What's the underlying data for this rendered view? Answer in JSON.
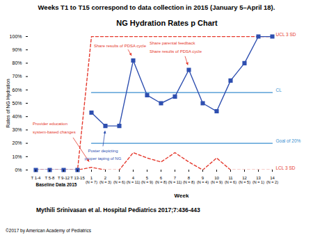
{
  "chart_data": {
    "type": "line",
    "subtitle": "Weeks T1 to T15 correspond to data collection in 2015 (January 5–April 18).",
    "title": "NG Hydration Rates p Chart",
    "caption": [
      "Mythili Srinivasan et al. Hospital Pediatrics 2017;7:436-443",
      "©2017 by American Academy of Pediatrics"
    ],
    "x_label": "Week",
    "y_label": "Rates of NG Hydration",
    "categories": [
      "T 1-4",
      "T 5-8",
      "T 9-12",
      "T 13-15",
      "1",
      "2",
      "3",
      "4",
      "5",
      "6",
      "7",
      "8",
      "9",
      "10",
      "11",
      "12",
      "13",
      "14"
    ],
    "n_labels": [
      null,
      null,
      null,
      null,
      "(N = 7)",
      "(N = 3)",
      "(N = 6)",
      "(N = 11)",
      "(N = 9)",
      "(N = 8)",
      "(N = 11)",
      "(N = 8)",
      "(N = 4)",
      "(N = 9)",
      "(N = 6)",
      "(N = 5)",
      "(N = 1)",
      "(N = 2)"
    ],
    "group_label": {
      "text": "Baseline Data 2015",
      "from": "T 1-4",
      "to": "T 13-15"
    },
    "series": [
      {
        "name": "UCL 3 SD",
        "color": "#e5392d",
        "line_style": "dashed",
        "values": [
          0,
          0,
          0,
          0,
          100,
          100,
          100,
          100,
          100,
          100,
          100,
          100,
          100,
          100,
          100,
          100,
          100,
          100
        ]
      },
      {
        "name": "LCL 3 SD",
        "color": "#e5392d",
        "line_style": "dashed",
        "values": [
          0,
          0,
          0,
          0,
          2,
          0,
          0,
          13,
          9,
          6,
          13,
          6,
          0,
          9,
          0,
          0,
          0,
          0
        ]
      },
      {
        "name": "Goal of 20%",
        "color": "#3a8fd0",
        "line_style": "solid",
        "values": [
          null,
          null,
          null,
          null,
          20,
          20,
          20,
          20,
          20,
          20,
          20,
          20,
          20,
          20,
          20,
          20,
          20,
          20
        ]
      },
      {
        "name": "CL",
        "color": "#3a8fd0",
        "line_style": "solid",
        "values": [
          null,
          null,
          null,
          null,
          58,
          58,
          58,
          58,
          58,
          58,
          58,
          58,
          58,
          58,
          58,
          58,
          58,
          58
        ]
      },
      {
        "color": "#2e4fb0",
        "line_style": "solid",
        "marker": "square",
        "values": [
          0,
          0,
          0,
          0,
          null,
          null,
          null,
          null,
          null,
          null,
          null,
          null,
          null,
          null,
          null,
          null,
          null,
          null
        ]
      },
      {
        "color": "#2e4fb0",
        "line_style": "solid",
        "marker": "square",
        "values": [
          null,
          null,
          null,
          null,
          43,
          33,
          33,
          82,
          56,
          50,
          55,
          75,
          50,
          44,
          67,
          80,
          100,
          100
        ]
      }
    ],
    "annotations": [
      {
        "text": [
          "Provider education",
          "system-based changes"
        ],
        "target": "1",
        "color": "#e5392d"
      },
      {
        "text": [
          "Poster depicting",
          "proper taping of NG"
        ],
        "target": "2",
        "color": "#2e4fb0"
      },
      {
        "text": [
          "Share results of PDSA cycle"
        ],
        "target": "4",
        "color": "#e5392d"
      },
      {
        "text": [
          "Share parental feedback",
          "Share results of PDSA cycle"
        ],
        "target": "8",
        "color": "#e5392d"
      }
    ],
    "ylim": [
      0,
      100
    ],
    "yticks": [
      {
        "value": 0,
        "label": "0%"
      },
      {
        "value": 10,
        "label": "10%"
      },
      {
        "value": 20,
        "label": "20%"
      },
      {
        "value": 30,
        "label": "30%"
      },
      {
        "value": 40,
        "label": "40%"
      },
      {
        "value": 50,
        "label": "50%"
      },
      {
        "value": 60,
        "label": "60%"
      },
      {
        "value": 70,
        "label": "70%"
      },
      {
        "value": 80,
        "label": "80%"
      },
      {
        "value": 90,
        "label": "90%"
      },
      {
        "value": 100,
        "label": "100%"
      }
    ],
    "grid": false
  }
}
